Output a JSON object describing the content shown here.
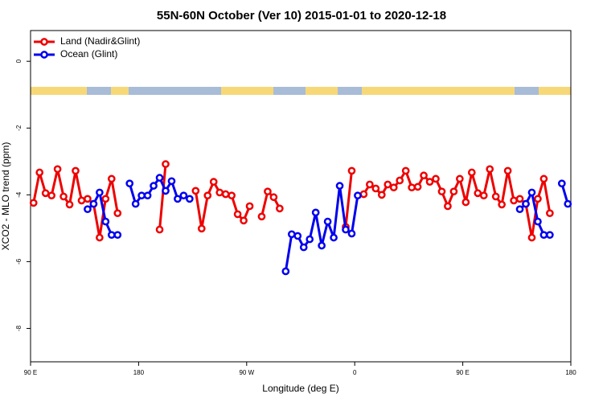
{
  "chart_data": {
    "type": "line",
    "title": "55N-60N October (Ver 10)   2015-01-01 to 2020-12-18",
    "x_label": "Longitude (deg E)",
    "y_label": "XCO2 - MLO trend (ppm)",
    "legend": "topleft",
    "grid": false,
    "xlim": [
      90,
      540
    ],
    "ylim": [
      -9.0,
      0.92
    ],
    "xticks": [
      {
        "value": 90,
        "label": "90 E"
      },
      {
        "value": 180,
        "label": "180"
      },
      {
        "value": 270,
        "label": "90 W"
      },
      {
        "value": 360,
        "label": "0"
      },
      {
        "value": 450,
        "label": "90 E"
      },
      {
        "value": 540,
        "label": "180"
      }
    ],
    "yticks": [
      -8,
      -6,
      -4,
      -2,
      0
    ],
    "x": [
      92.5,
      97.5,
      102.5,
      107.5,
      112.5,
      117.5,
      122.5,
      127.5,
      132.5,
      137.5,
      142.5,
      147.5,
      152.5,
      157.5,
      162.5,
      167.5,
      172.5,
      177.5,
      182.5,
      187.5,
      192.5,
      197.5,
      202.5,
      207.5,
      212.5,
      217.5,
      222.5,
      227.5,
      232.5,
      237.5,
      242.5,
      247.5,
      252.5,
      257.5,
      262.5,
      267.5,
      272.5,
      277.5,
      282.5,
      287.5,
      292.5,
      297.5,
      302.5,
      307.5,
      312.5,
      317.5,
      322.5,
      327.5,
      332.5,
      337.5,
      342.5,
      347.5,
      352.5,
      357.5,
      362.5,
      367.5,
      372.5,
      377.5,
      382.5,
      387.5,
      392.5,
      397.5,
      402.5,
      407.5,
      412.5,
      417.5,
      422.5,
      427.5,
      432.5,
      437.5,
      442.5,
      447.5,
      452.5,
      457.5,
      462.5,
      467.5,
      472.5,
      477.5,
      482.5,
      487.5,
      492.5,
      497.5,
      502.5,
      507.5,
      512.5,
      517.5,
      522.5,
      527.5,
      532.5,
      537.5
    ],
    "series": [
      {
        "name": "Land (Nadir&Glint)",
        "color": "#ee0000",
        "values": [
          -4.24,
          -3.33,
          -3.95,
          -4.02,
          -3.23,
          -4.05,
          -4.29,
          -3.28,
          -4.17,
          -4.12,
          -4.27,
          -5.28,
          -4.12,
          -3.52,
          -4.55,
          null,
          null,
          null,
          null,
          null,
          null,
          -5.04,
          -3.08,
          null,
          null,
          null,
          null,
          -3.88,
          -5.01,
          -4.02,
          -3.61,
          -3.93,
          -3.98,
          -4.02,
          -4.58,
          -4.77,
          -4.34,
          null,
          -4.65,
          -3.9,
          -4.07,
          -4.41,
          null,
          null,
          null,
          null,
          null,
          null,
          null,
          null,
          null,
          null,
          -4.96,
          -3.28,
          null,
          -3.98,
          -3.69,
          -3.81,
          -4.0,
          -3.69,
          -3.78,
          -3.57,
          -3.28,
          -3.78,
          -3.76,
          -3.42,
          -3.61,
          -3.52,
          -3.9,
          -4.34,
          -3.9,
          -3.52,
          -4.22,
          -3.33,
          -3.95,
          -4.02,
          -3.23,
          -4.05,
          -4.29,
          -3.28,
          -4.17,
          -4.12,
          -4.27,
          -5.28,
          -4.12,
          -3.52,
          -4.55,
          null,
          null,
          null
        ]
      },
      {
        "name": "Ocean (Glint)",
        "color": "#0000ee",
        "values": [
          null,
          null,
          null,
          null,
          null,
          null,
          null,
          null,
          null,
          -4.43,
          -4.27,
          -3.93,
          -4.8,
          -5.2,
          -5.2,
          null,
          -3.66,
          -4.27,
          -4.02,
          -4.02,
          -3.73,
          -3.49,
          -3.88,
          -3.59,
          -4.12,
          -4.02,
          -4.12,
          null,
          null,
          null,
          null,
          null,
          null,
          null,
          null,
          null,
          null,
          null,
          null,
          null,
          null,
          null,
          -6.29,
          -5.18,
          -5.23,
          -5.57,
          -5.33,
          -4.53,
          -5.52,
          -4.8,
          -5.28,
          -3.73,
          -5.04,
          -5.16,
          -4.02,
          null,
          null,
          null,
          null,
          null,
          null,
          null,
          null,
          null,
          null,
          null,
          null,
          null,
          null,
          null,
          null,
          null,
          null,
          null,
          null,
          null,
          null,
          null,
          null,
          null,
          null,
          -4.43,
          -4.27,
          -3.93,
          -4.8,
          -5.2,
          -5.2,
          null,
          -3.66,
          -4.27
        ]
      }
    ]
  }
}
